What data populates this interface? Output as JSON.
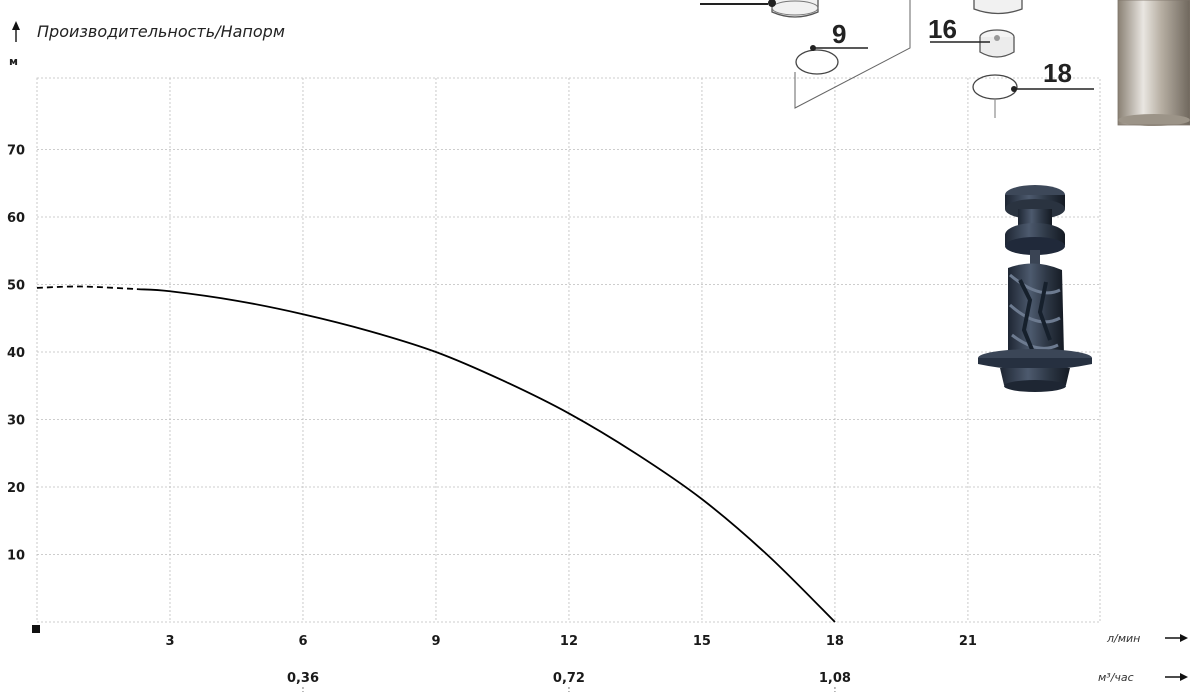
{
  "chart_data": {
    "type": "line",
    "title": "Производительность/Напорм",
    "ylabel": "м",
    "xlabel": "л/мин",
    "x2label": "м³/час",
    "ylim": [
      0,
      80
    ],
    "xlim": [
      0,
      24
    ],
    "yticks": [
      10,
      20,
      30,
      40,
      50,
      60,
      70
    ],
    "xticks": [
      3,
      6,
      9,
      12,
      15,
      18,
      21
    ],
    "x2ticks": [
      {
        "x": 6,
        "label": "0,36"
      },
      {
        "x": 12,
        "label": "0,72"
      },
      {
        "x": 18,
        "label": "1,08"
      }
    ],
    "grid": true,
    "series": [
      {
        "style": "dashed",
        "x": [
          0,
          1,
          2.3
        ],
        "y": [
          49.5,
          49.7,
          49.3
        ]
      },
      {
        "style": "solid",
        "x": [
          2.3,
          3,
          4.5,
          6,
          7.5,
          9,
          10.5,
          12,
          13.5,
          15,
          16.5,
          18
        ],
        "y": [
          49.3,
          49,
          47.6,
          45.6,
          43.1,
          40,
          35.8,
          30.9,
          25,
          18.2,
          9.8,
          0
        ]
      }
    ]
  },
  "diagram_callouts": [
    "9",
    "16",
    "18"
  ],
  "colors": {
    "curve": "#000000",
    "grid": "#bdbdbd",
    "impeller": "#2f3a4a",
    "steel": "#bfb9b0"
  }
}
